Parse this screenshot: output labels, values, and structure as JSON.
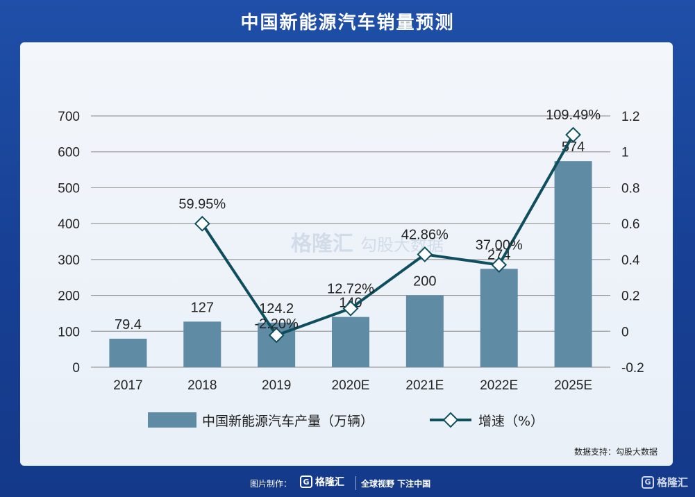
{
  "header": {
    "title": "中国新能源汽车销量预测"
  },
  "source": "数据支持：勾股大数据",
  "footer": {
    "credit": "图片制作：",
    "brand": "格隆汇",
    "slogan": "全球视野 下注中国",
    "corner_brand": "格隆汇"
  },
  "watermark": {
    "brand": "格隆汇",
    "partner": "勾股大数据"
  },
  "colors": {
    "bar": "#5f8ba4",
    "line": "#0f4e5c",
    "marker_fill": "#ffffff"
  },
  "chart_data": {
    "type": "bar",
    "categories": [
      "2017",
      "2018",
      "2019",
      "2020E",
      "2021E",
      "2022E",
      "2025E"
    ],
    "series": [
      {
        "name": "中国新能源汽车产量（万辆）",
        "type": "bar",
        "axis": "left",
        "values": [
          79.4,
          127,
          124.2,
          140,
          200,
          274,
          574
        ],
        "labels": [
          "79.4",
          "127",
          "124.2",
          "140",
          "200",
          "274",
          "574"
        ]
      },
      {
        "name": "增速（%）",
        "type": "line",
        "axis": "right",
        "values": [
          null,
          0.5995,
          -0.022,
          0.1272,
          0.4286,
          0.37,
          1.0949
        ],
        "labels": [
          "",
          "59.95%",
          "-2.20%",
          "12.72%",
          "42.86%",
          "37.00%",
          "109.49%"
        ]
      }
    ],
    "y_left": {
      "min": 0,
      "max": 700,
      "ticks": [
        "0",
        "100",
        "200",
        "300",
        "400",
        "500",
        "600",
        "700"
      ]
    },
    "y_right": {
      "min": -0.2,
      "max": 1.2,
      "ticks": [
        "-0.2",
        "0",
        "0.2",
        "0.4",
        "0.6",
        "0.8",
        "1",
        "1.2"
      ]
    },
    "grid": true,
    "legend_position": "bottom"
  }
}
